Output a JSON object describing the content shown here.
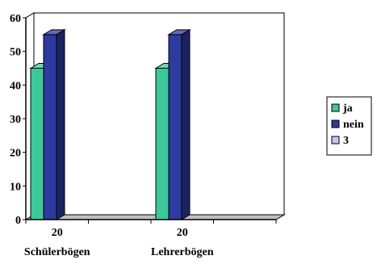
{
  "chart_data": {
    "type": "bar",
    "style": "3d-clustered-column",
    "title": "",
    "xlabel": "",
    "ylabel": "",
    "ylim": [
      0,
      60
    ],
    "yticks": [
      0,
      10,
      20,
      30,
      40,
      50,
      60
    ],
    "grid": true,
    "legend_position": "right",
    "categories": [
      {
        "top": "20",
        "bottom": "Schülerbögen"
      },
      {
        "top": "20",
        "bottom": "Lehrerbögen"
      }
    ],
    "series": [
      {
        "name": "ja",
        "color": "#3ec89a",
        "values": [
          45,
          45
        ]
      },
      {
        "name": "nein",
        "color": "#2d3a9e",
        "values": [
          55,
          55
        ]
      },
      {
        "name": "3",
        "color": "#c8c4ec",
        "values": [
          0,
          0
        ]
      }
    ]
  }
}
